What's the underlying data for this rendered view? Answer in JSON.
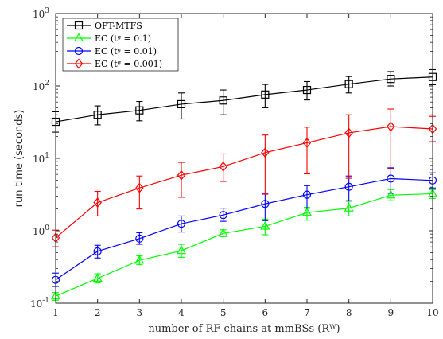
{
  "chart_data": {
    "type": "line",
    "x": [
      1,
      2,
      3,
      4,
      5,
      6,
      7,
      8,
      9,
      10
    ],
    "xlabel": "number of RF chains at mmBSs (Rᵂ)",
    "ylabel": "run time (seconds)",
    "xlim": [
      1,
      10
    ],
    "ylim": [
      0.1,
      1000
    ],
    "yscale": "log",
    "grid": false,
    "legend_position": "top-left",
    "x_tick_labels": [
      "1",
      "2",
      "3",
      "4",
      "5",
      "6",
      "7",
      "8",
      "9",
      "10"
    ],
    "y_ticks": [
      {
        "value": 0.1,
        "base": "10",
        "exp": "-1"
      },
      {
        "value": 1,
        "base": "10",
        "exp": "0"
      },
      {
        "value": 10,
        "base": "10",
        "exp": "1"
      },
      {
        "value": 100,
        "base": "10",
        "exp": "2"
      },
      {
        "value": 1000,
        "base": "10",
        "exp": "3"
      }
    ],
    "series": [
      {
        "name": "OPT-MTFS",
        "color": "#000000",
        "marker": "square",
        "values": [
          32,
          40,
          46,
          56,
          63,
          76,
          88,
          106,
          125,
          133
        ],
        "err_low": [
          23,
          29,
          33,
          35,
          40,
          50,
          64,
          80,
          100,
          104
        ],
        "err_high": [
          44,
          53,
          61,
          80,
          88,
          105,
          115,
          135,
          158,
          168
        ]
      },
      {
        "name": "EC (tᵍ = 0.1)",
        "color": "#00ff00",
        "marker": "triangle",
        "values": [
          0.125,
          0.22,
          0.39,
          0.53,
          0.92,
          1.15,
          1.78,
          2.05,
          3.1,
          3.25
        ],
        "err_low": [
          0.11,
          0.19,
          0.34,
          0.43,
          0.83,
          0.88,
          1.4,
          1.6,
          2.6,
          2.8
        ],
        "err_high": [
          0.14,
          0.255,
          0.45,
          0.65,
          1.03,
          1.45,
          2.1,
          2.55,
          3.7,
          3.7
        ]
      },
      {
        "name": "EC (tᵍ = 0.01)",
        "color": "#0000ff",
        "marker": "circle",
        "values": [
          0.21,
          0.52,
          0.78,
          1.25,
          1.65,
          2.35,
          3.15,
          4.05,
          5.25,
          4.95
        ],
        "err_low": [
          0.17,
          0.42,
          0.65,
          0.96,
          1.35,
          1.38,
          2.05,
          2.6,
          3.3,
          3.9
        ],
        "err_high": [
          0.26,
          0.63,
          0.94,
          1.6,
          2.05,
          3.3,
          4.2,
          5.7,
          7.4,
          6.3
        ]
      },
      {
        "name": "EC (tᵍ = 0.001)",
        "color": "#ff0000",
        "marker": "diamond",
        "values": [
          0.8,
          2.45,
          3.9,
          5.85,
          7.7,
          12.0,
          16.4,
          22.5,
          27.5,
          25.5
        ],
        "err_low": [
          0.6,
          1.6,
          2.0,
          2.9,
          4.8,
          3.2,
          6.1,
          5.3,
          7.2,
          17.0
        ],
        "err_high": [
          1.02,
          3.5,
          5.7,
          8.8,
          11.5,
          21.0,
          27.0,
          40.0,
          48.0,
          38.0
        ]
      }
    ]
  }
}
